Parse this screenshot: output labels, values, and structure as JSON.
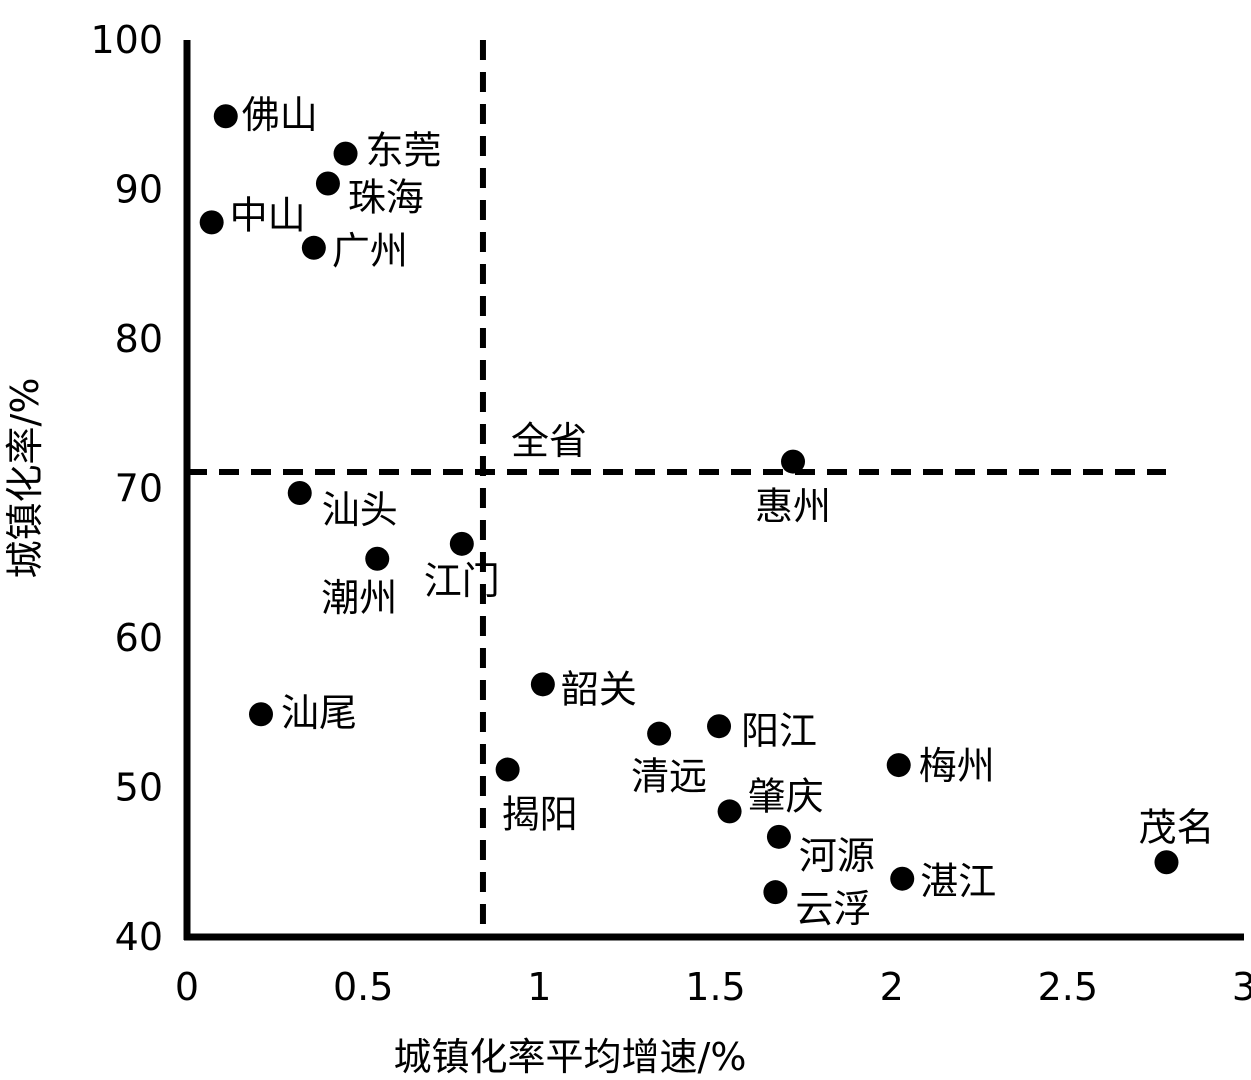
{
  "chart_data": {
    "type": "scatter",
    "xlabel": "城镇化率平均增速/%",
    "ylabel": "城镇化率/%",
    "xlim": [
      0,
      3
    ],
    "ylim": [
      40,
      100
    ],
    "x_ticks": [
      "0",
      "0.5",
      "1",
      "1.5",
      "2",
      "2.5",
      "3"
    ],
    "y_ticks": [
      "40",
      "50",
      "60",
      "70",
      "80",
      "90",
      "100"
    ],
    "reference_lines": {
      "label": "全省",
      "x": 0.84,
      "y": 71.1
    },
    "points": [
      {
        "name": "佛山",
        "x": 0.11,
        "y": 94.9
      },
      {
        "name": "东莞",
        "x": 0.45,
        "y": 92.4
      },
      {
        "name": "珠海",
        "x": 0.4,
        "y": 90.4
      },
      {
        "name": "中山",
        "x": 0.07,
        "y": 87.8
      },
      {
        "name": "广州",
        "x": 0.36,
        "y": 86.1
      },
      {
        "name": "惠州",
        "x": 1.72,
        "y": 71.8
      },
      {
        "name": "汕头",
        "x": 0.32,
        "y": 69.7
      },
      {
        "name": "江门",
        "x": 0.78,
        "y": 66.3
      },
      {
        "name": "潮州",
        "x": 0.54,
        "y": 65.3
      },
      {
        "name": "韶关",
        "x": 1.01,
        "y": 56.9
      },
      {
        "name": "汕尾",
        "x": 0.21,
        "y": 54.9
      },
      {
        "name": "清远",
        "x": 1.34,
        "y": 53.6
      },
      {
        "name": "阳江",
        "x": 1.51,
        "y": 54.1
      },
      {
        "name": "梅州",
        "x": 2.02,
        "y": 51.5
      },
      {
        "name": "揭阳",
        "x": 0.91,
        "y": 51.2
      },
      {
        "name": "肇庆",
        "x": 1.54,
        "y": 48.4
      },
      {
        "name": "河源",
        "x": 1.68,
        "y": 46.7
      },
      {
        "name": "茂名",
        "x": 2.78,
        "y": 45.0
      },
      {
        "name": "湛江",
        "x": 2.03,
        "y": 43.9
      },
      {
        "name": "云浮",
        "x": 1.67,
        "y": 43.0
      }
    ]
  }
}
